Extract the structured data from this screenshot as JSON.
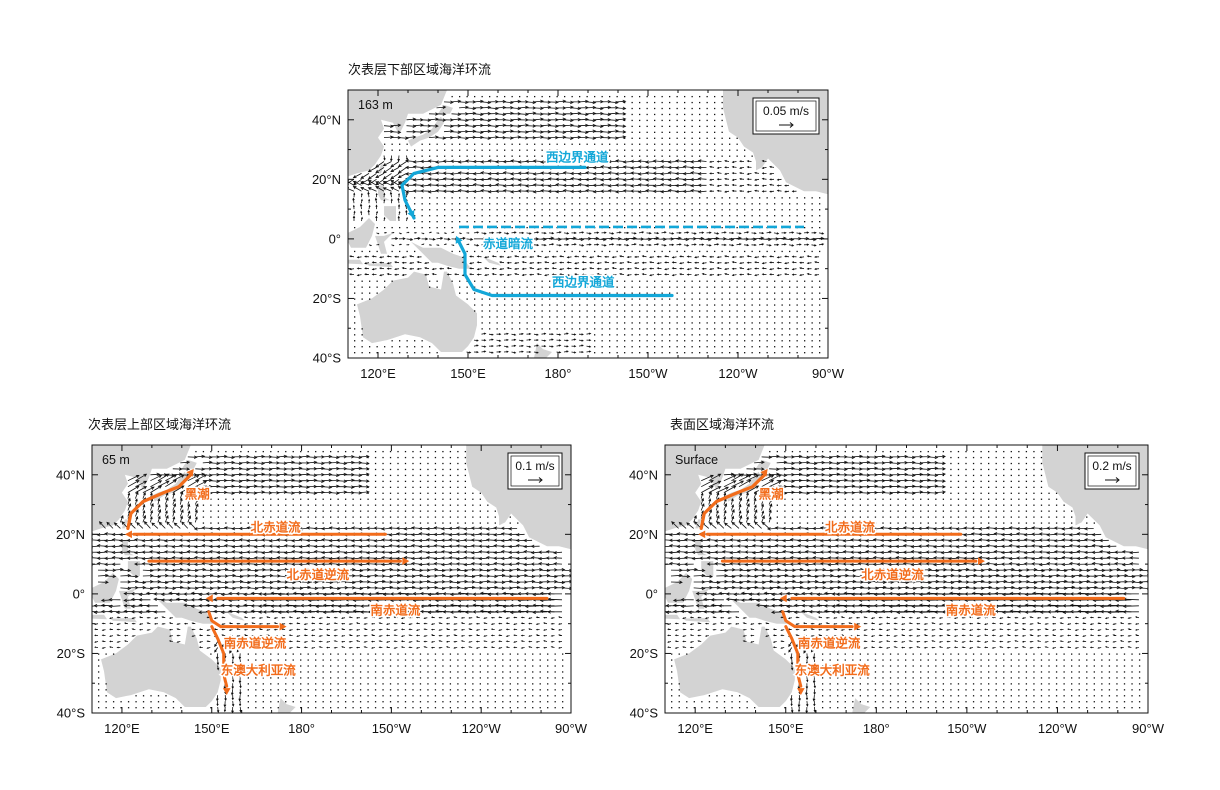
{
  "colors": {
    "land": "#d3d3d3",
    "vector": "#111111",
    "current_blue": "#13a7d8",
    "current_orange": "#f26c1b"
  },
  "axes": {
    "lon_ticks": [
      "120°E",
      "150°E",
      "180°",
      "150°W",
      "120°W",
      "90°W"
    ],
    "lat_ticks": [
      "40°N",
      "20°N",
      "0°",
      "20°S",
      "40°S"
    ]
  },
  "panels": [
    {
      "id": "lower-subsurface",
      "title": "次表层下部区域海洋环流",
      "depth_label": "163 m",
      "reference_vector": "0.05 m/s",
      "current_labels": [
        {
          "text": "西边界通道",
          "color": "current_blue"
        },
        {
          "text": "赤道暗流",
          "color": "current_blue"
        },
        {
          "text": "西边界通道",
          "color": "current_blue"
        }
      ]
    },
    {
      "id": "upper-subsurface",
      "title": "次表层上部区域海洋环流",
      "depth_label": "65 m",
      "reference_vector": "0.1 m/s",
      "current_labels": [
        {
          "text": "黑潮",
          "color": "current_orange"
        },
        {
          "text": "北赤道流",
          "color": "current_orange"
        },
        {
          "text": "北赤道逆流",
          "color": "current_orange"
        },
        {
          "text": "南赤道流",
          "color": "current_orange"
        },
        {
          "text": "南赤道逆流",
          "color": "current_orange"
        },
        {
          "text": "东澳大利亚流",
          "color": "current_orange"
        }
      ]
    },
    {
      "id": "surface",
      "title": "表面区域海洋环流",
      "depth_label": "Surface",
      "reference_vector": "0.2 m/s",
      "current_labels": [
        {
          "text": "黑潮",
          "color": "current_orange"
        },
        {
          "text": "北赤道流",
          "color": "current_orange"
        },
        {
          "text": "北赤道逆流",
          "color": "current_orange"
        },
        {
          "text": "南赤道流",
          "color": "current_orange"
        },
        {
          "text": "南赤道逆流",
          "color": "current_orange"
        },
        {
          "text": "东澳大利亚流",
          "color": "current_orange"
        }
      ]
    }
  ]
}
